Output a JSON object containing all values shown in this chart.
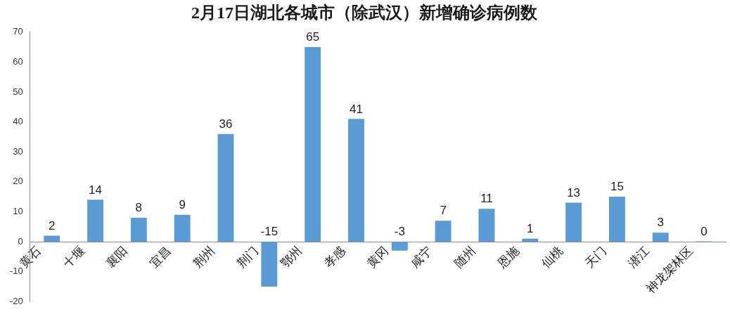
{
  "chart_data": {
    "type": "bar",
    "title": "2月17日湖北各城市（除武汉）新增确诊病例数",
    "categories": [
      "黄石",
      "十堰",
      "襄阳",
      "宜昌",
      "荆州",
      "荆门",
      "鄂州",
      "孝感",
      "黄冈",
      "咸宁",
      "随州",
      "恩施",
      "仙桃",
      "天门",
      "潜江",
      "神龙架林区"
    ],
    "values": [
      2,
      14,
      8,
      9,
      36,
      -15,
      65,
      41,
      -3,
      7,
      11,
      1,
      13,
      15,
      3,
      0
    ],
    "color": "#5b9bd5",
    "ylim": [
      -20,
      70
    ],
    "yticks": [
      -20,
      -10,
      0,
      10,
      20,
      30,
      40,
      50,
      60,
      70
    ],
    "data_labels": true
  }
}
